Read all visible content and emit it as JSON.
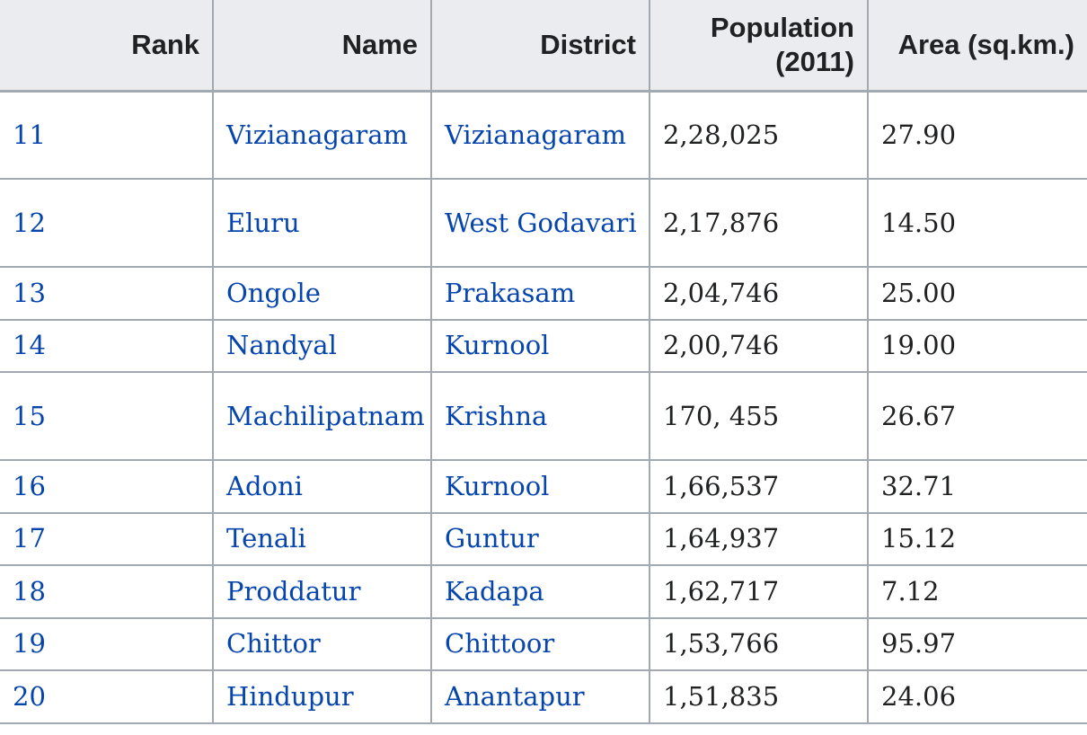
{
  "table": {
    "headers": [
      {
        "key": "rank",
        "label": "Rank"
      },
      {
        "key": "name",
        "label": "Name"
      },
      {
        "key": "district",
        "label": "District"
      },
      {
        "key": "population",
        "label": "Population (2011)"
      },
      {
        "key": "area",
        "label": "Area (sq.km.)"
      }
    ],
    "rows": [
      {
        "rank": "11",
        "name": "Vizianagaram",
        "district": "Vizianagaram",
        "population": "2,28,025",
        "area": "27.90"
      },
      {
        "rank": "12",
        "name": "Eluru",
        "district": "West Godavari",
        "population": "2,17,876",
        "area": "14.50"
      },
      {
        "rank": "13",
        "name": "Ongole",
        "district": "Prakasam",
        "population": "2,04,746",
        "area": "25.00"
      },
      {
        "rank": "14",
        "name": "Nandyal",
        "district": "Kurnool",
        "population": "2,00,746",
        "area": "19.00"
      },
      {
        "rank": "15",
        "name": "Machilipatnam",
        "district": "Krishna",
        "population": "170, 455",
        "area": "26.67"
      },
      {
        "rank": "16",
        "name": "Adoni",
        "district": "Kurnool",
        "population": "1,66,537",
        "area": "32.71"
      },
      {
        "rank": "17",
        "name": "Tenali",
        "district": "Guntur",
        "population": "1,64,937",
        "area": "15.12"
      },
      {
        "rank": "18",
        "name": "Proddatur",
        "district": "Kadapa",
        "population": "1,62,717",
        "area": "7.12"
      },
      {
        "rank": "19",
        "name": "Chittor",
        "district": "Chittoor",
        "population": "1,53,766",
        "area": "95.97"
      },
      {
        "rank": "20",
        "name": "Hindupur",
        "district": "Anantapur",
        "population": "1,51,835",
        "area": "24.06"
      }
    ]
  },
  "colors": {
    "link": "#0645ad",
    "text": "#202122",
    "header_bg": "#eaecf0",
    "border": "#a2a9b1"
  }
}
